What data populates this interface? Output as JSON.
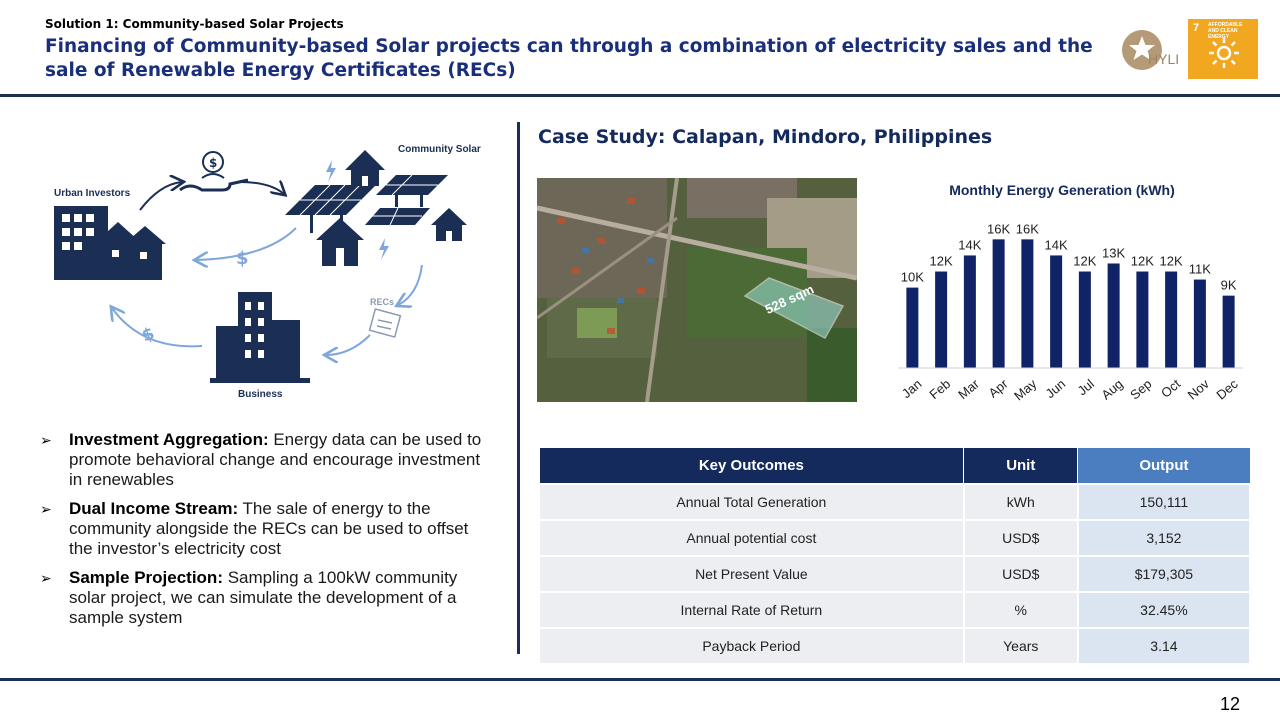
{
  "header": {
    "subtitle": "Solution 1: Community-based Solar Projects",
    "title": "Financing of Community-based Solar projects can through a combination of electricity sales and the sale of Renewable Energy Certificates (RECs)",
    "logo_text": "HYLI",
    "sdg_number": "7",
    "sdg_label": "AFFORDABLE AND CLEAN ENERGY"
  },
  "diagram": {
    "urban_investors": "Urban Investors",
    "community_solar": "Community Solar",
    "recs": "RECs",
    "business": "Business",
    "dollar": "$"
  },
  "bullets": [
    {
      "heading": "Investment Aggregation:",
      "text": " Energy data can be used to promote behavioral change and encourage investment in renewables"
    },
    {
      "heading": "Dual Income Stream:",
      "text": " The sale of energy to the community alongside the RECs can be used to offset the investor’s electricity cost"
    },
    {
      "heading": "Sample Projection:",
      "text": " Sampling a 100kW community solar project, we can simulate the development of a sample system"
    }
  ],
  "case_study": {
    "title": "Case Study: Calapan, Mindoro, Philippines",
    "map_label": "528 sqm"
  },
  "chart_data": {
    "type": "bar",
    "title": "Monthly Energy Generation (kWh)",
    "categories": [
      "Jan",
      "Feb",
      "Mar",
      "Apr",
      "May",
      "Jun",
      "Jul",
      "Aug",
      "Sep",
      "Oct",
      "Nov",
      "Dec"
    ],
    "values": [
      10,
      12,
      14,
      16,
      16,
      14,
      12,
      13,
      12,
      12,
      11,
      9
    ],
    "data_labels": [
      "10K",
      "12K",
      "14K",
      "16K",
      "16K",
      "14K",
      "12K",
      "13K",
      "12K",
      "12K",
      "11K",
      "9K"
    ],
    "bar_color": "#0f2366",
    "ylim": [
      0,
      17
    ],
    "grid": false,
    "legend": false
  },
  "table": {
    "headers": [
      "Key Outcomes",
      "Unit",
      "Output"
    ],
    "rows": [
      [
        "Annual Total Generation",
        "kWh",
        "150,111"
      ],
      [
        "Annual potential cost",
        "USD$",
        "3,152"
      ],
      [
        "Net Present Value",
        "USD$",
        "$179,305"
      ],
      [
        "Internal Rate of Return",
        "%",
        "32.45%"
      ],
      [
        "Payback Period",
        "Years",
        "3.14"
      ]
    ]
  },
  "page_number": "12"
}
